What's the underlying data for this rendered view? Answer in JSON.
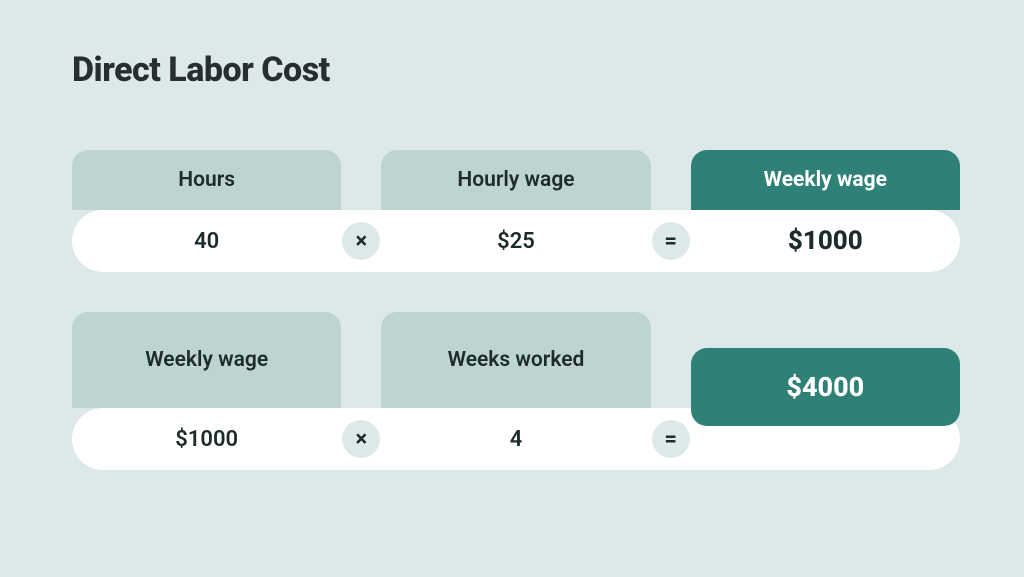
{
  "type": "infographic",
  "title": "Direct Labor Cost",
  "colors": {
    "background": "#dde9e8",
    "text_dark": "#272e2e",
    "header_light_bg": "#bdd4d2",
    "header_dark_bg": "#2f8076",
    "value_strip_bg": "#ffffff",
    "op_circle_bg": "#dde9e8",
    "result_pill_bg": "#2f8076"
  },
  "typography": {
    "title_fontsize": 34,
    "title_weight": 800,
    "header_fontsize": 21,
    "value_fontsize": 22,
    "result_fontsize": 27
  },
  "layout": {
    "header_radius": 16,
    "strip_radius": 31,
    "op_circle_size": 38,
    "row_gap": 40
  },
  "rows": [
    {
      "style": "normal",
      "a": {
        "label": "Hours",
        "value": "40",
        "variant": "light"
      },
      "op1": "×",
      "b": {
        "label": "Hourly wage",
        "value": "$25",
        "variant": "light"
      },
      "op2": "=",
      "c": {
        "label": "Weekly wage",
        "value": "$1000",
        "variant": "dark"
      }
    },
    {
      "style": "tall",
      "a": {
        "label": "Weekly wage",
        "value": "$1000",
        "variant": "light"
      },
      "op1": "×",
      "b": {
        "label": "Weeks worked",
        "value": "4",
        "variant": "light"
      },
      "op2": "=",
      "result": "$4000"
    }
  ]
}
